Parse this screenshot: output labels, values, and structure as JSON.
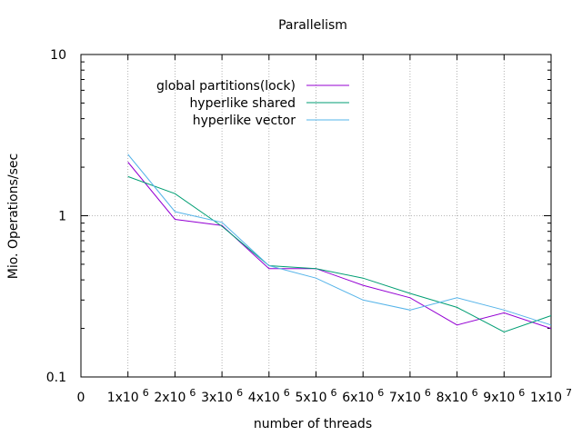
{
  "chart_data": {
    "type": "line",
    "title": "Parallelism",
    "xlabel": "number of threads",
    "ylabel": "Mio. Operations/sec",
    "xlim": [
      0,
      10000000
    ],
    "ylim": [
      0.1,
      10
    ],
    "y_scale": "log",
    "grid": true,
    "legend_position": "top-right",
    "x_ticks": [
      {
        "value": 0,
        "mantissa": "0",
        "exponent": ""
      },
      {
        "value": 1000000,
        "mantissa": "1x10",
        "exponent": "6"
      },
      {
        "value": 2000000,
        "mantissa": "2x10",
        "exponent": "6"
      },
      {
        "value": 3000000,
        "mantissa": "3x10",
        "exponent": "6"
      },
      {
        "value": 4000000,
        "mantissa": "4x10",
        "exponent": "6"
      },
      {
        "value": 5000000,
        "mantissa": "5x10",
        "exponent": "6"
      },
      {
        "value": 6000000,
        "mantissa": "6x10",
        "exponent": "6"
      },
      {
        "value": 7000000,
        "mantissa": "7x10",
        "exponent": "6"
      },
      {
        "value": 8000000,
        "mantissa": "8x10",
        "exponent": "6"
      },
      {
        "value": 9000000,
        "mantissa": "9x10",
        "exponent": "6"
      },
      {
        "value": 10000000,
        "mantissa": "1x10",
        "exponent": "7"
      }
    ],
    "y_ticks": [
      {
        "value": 0.1,
        "label": "0.1"
      },
      {
        "value": 1,
        "label": "1"
      },
      {
        "value": 10,
        "label": "10"
      }
    ],
    "x": [
      1000000,
      2000000,
      3000000,
      4000000,
      5000000,
      6000000,
      7000000,
      8000000,
      9000000,
      10000000
    ],
    "series": [
      {
        "name": "global partitions(lock)",
        "color": "#9400d3",
        "values": [
          2.15,
          0.95,
          0.87,
          0.47,
          0.47,
          0.37,
          0.31,
          0.21,
          0.25,
          0.2
        ]
      },
      {
        "name": "hyperlike shared",
        "color": "#009e73",
        "values": [
          1.75,
          1.37,
          0.86,
          0.49,
          0.47,
          0.41,
          0.33,
          0.27,
          0.19,
          0.24
        ]
      },
      {
        "name": "hyperlike vector",
        "color": "#56b4e9",
        "values": [
          2.4,
          1.06,
          0.91,
          0.49,
          0.41,
          0.3,
          0.26,
          0.31,
          0.26,
          0.21
        ]
      }
    ]
  }
}
